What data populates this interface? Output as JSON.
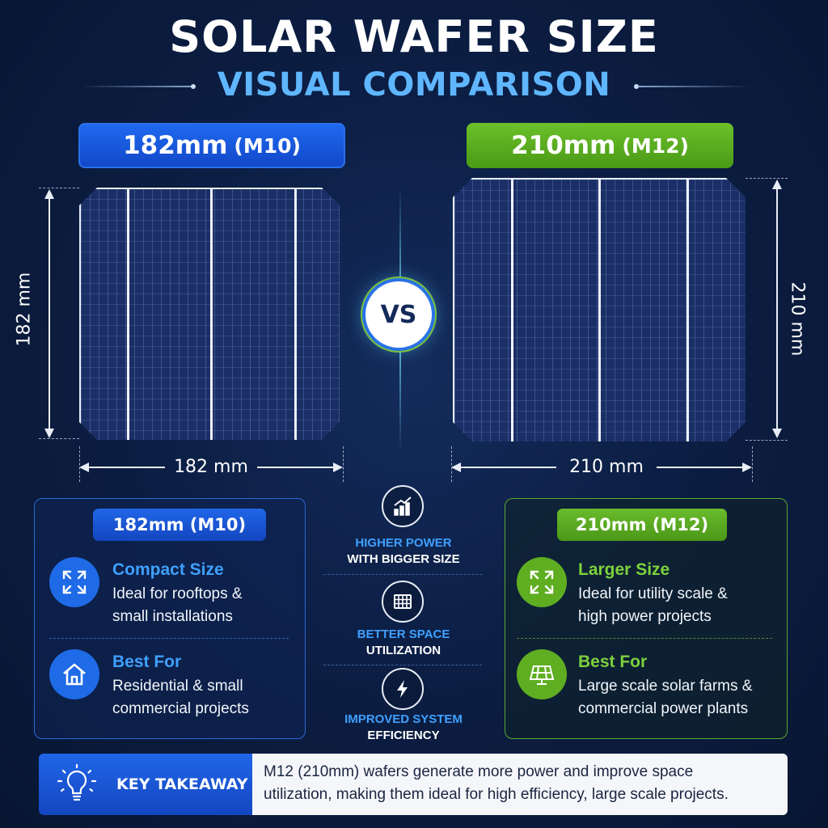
{
  "header": {
    "title": "SOLAR WAFER SIZE",
    "subtitle": "VISUAL COMPARISON"
  },
  "comparison": {
    "left": {
      "label_main": "182mm",
      "label_code": "(M10)",
      "height_dim": "182 mm",
      "width_dim": "182 mm",
      "color": "#1f5fe0"
    },
    "vs": "VS",
    "right": {
      "label_main": "210mm",
      "label_code": "(M12)",
      "height_dim": "210 mm",
      "width_dim": "210 mm",
      "color": "#5fae22"
    }
  },
  "cards": {
    "left": {
      "title": "182mm (M10)",
      "feature1_title": "Compact Size",
      "feature1_line1": "Ideal for rooftops &",
      "feature1_line2": "small installations",
      "feature1_icon": "expand-icon",
      "feature2_title": "Best For",
      "feature2_line1": "Residential & small",
      "feature2_line2": "commercial projects",
      "feature2_icon": "house-icon"
    },
    "right": {
      "title": "210mm (M12)",
      "feature1_title": "Larger Size",
      "feature1_line1": "Ideal for utility scale &",
      "feature1_line2": "high power projects",
      "feature1_icon": "expand-icon",
      "feature2_title": "Best For",
      "feature2_line1": "Large scale solar farms &",
      "feature2_line2": "commercial power plants",
      "feature2_icon": "solar-panel-icon"
    }
  },
  "benefits": [
    {
      "line1": "HIGHER POWER",
      "line2": "WITH BIGGER SIZE",
      "icon": "bar-chart-icon"
    },
    {
      "line1": "BETTER SPACE",
      "line2": "UTILIZATION",
      "icon": "grid-icon"
    },
    {
      "line1": "IMPROVED SYSTEM",
      "line2": "EFFICIENCY",
      "icon": "lightning-icon"
    }
  ],
  "takeaway": {
    "label": "KEY TAKEAWAY",
    "icon": "lightbulb-icon",
    "line1": "M12 (210mm) wafers generate more power and improve space",
    "line2": "utilization, making them ideal for high efficiency, large scale projects."
  }
}
